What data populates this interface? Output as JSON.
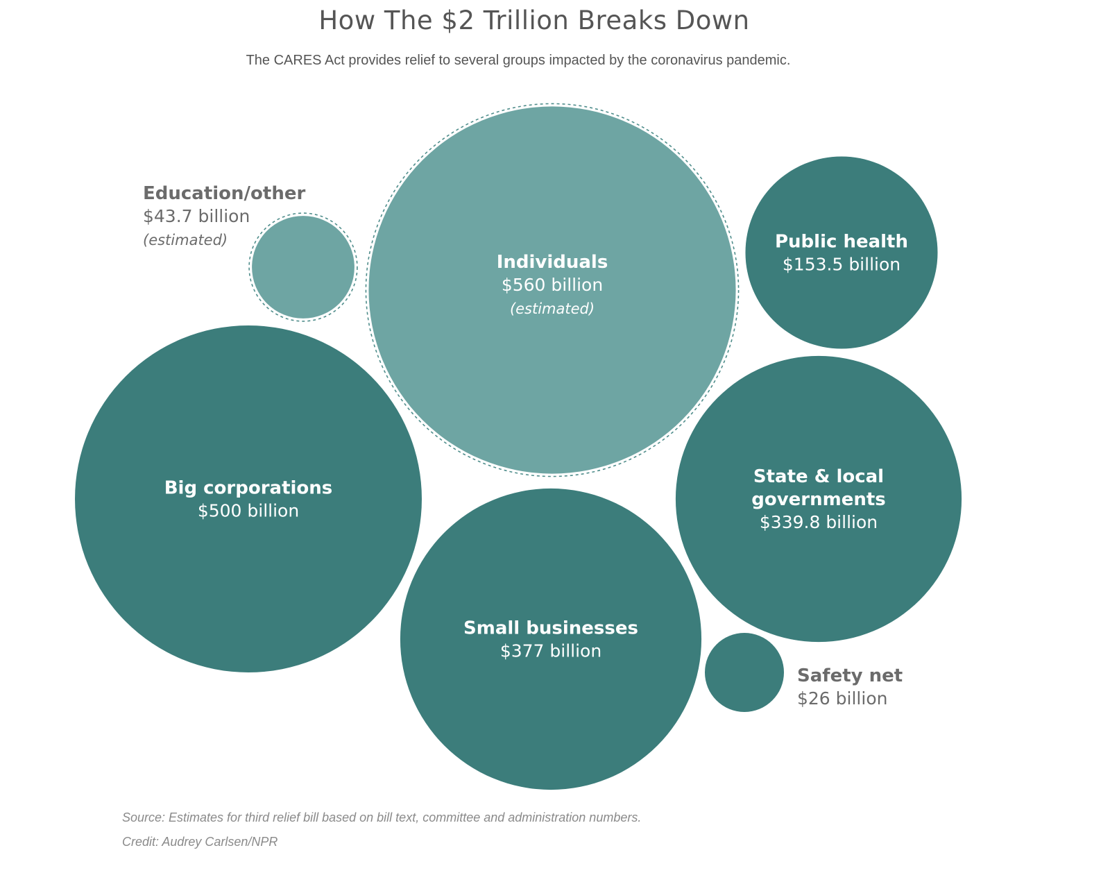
{
  "chart_data": {
    "type": "bubble",
    "title": "How The $2 Trillion Breaks Down",
    "subtitle": "The CARES Act provides relief to several groups impacted by the coronavirus pandemic.",
    "unit": "billion USD",
    "bubbles": [
      {
        "id": "individuals",
        "label": "Individuals",
        "value_text": "$560 billion",
        "value": 560,
        "note": "(estimated)",
        "estimated": true
      },
      {
        "id": "big-corporations",
        "label": "Big corporations",
        "value_text": "$500 billion",
        "value": 500,
        "note": "",
        "estimated": false
      },
      {
        "id": "small-businesses",
        "label": "Small businesses",
        "value_text": "$377 billion",
        "value": 377,
        "note": "",
        "estimated": false
      },
      {
        "id": "state-local",
        "label": "State & local governments",
        "label_lines": [
          "State & local",
          "governments"
        ],
        "value_text": "$339.8 billion",
        "value": 339.8,
        "note": "",
        "estimated": false
      },
      {
        "id": "public-health",
        "label": "Public health",
        "value_text": "$153.5 billion",
        "value": 153.5,
        "note": "",
        "estimated": false
      },
      {
        "id": "education-other",
        "label": "Education/other",
        "value_text": "$43.7 billion",
        "value": 43.7,
        "note": "(estimated)",
        "estimated": true
      },
      {
        "id": "safety-net",
        "label": "Safety net",
        "value_text": "$26 billion",
        "value": 26,
        "note": "",
        "estimated": false
      }
    ],
    "colors": {
      "actual": "#3c7d7b",
      "estimated": "#6ea5a3",
      "estimated_outline": "#4f8d8b"
    }
  },
  "footer": {
    "source": "Source: Estimates for third relief bill based on bill text, committee and administration numbers.",
    "credit": "Credit: Audrey Carlsen/NPR"
  }
}
